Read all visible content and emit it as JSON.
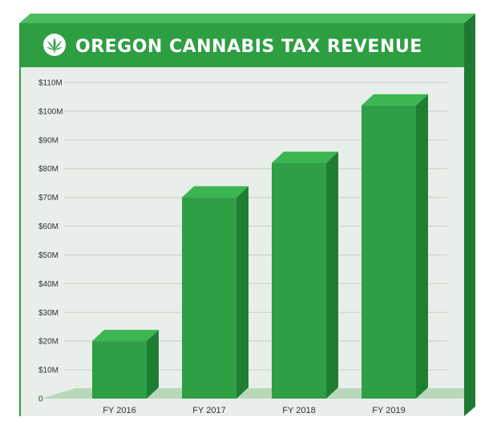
{
  "colors": {
    "frame_green": "#2e9e43",
    "frame_dark": "#1f7a31",
    "frame_light": "#4cba5e",
    "panel_bg": "#e8eee9",
    "bar_front": "#2f9f45",
    "bar_top": "#3cb553",
    "bar_side": "#1e7f33",
    "floor": "#b9d8bb",
    "grid": "#c9d0ca"
  },
  "icons": {
    "logo": "cannabis-leaf-icon"
  },
  "chart_data": {
    "type": "bar",
    "title": "OREGON CANNABIS TAX REVENUE",
    "xlabel": "",
    "ylabel": "",
    "categories": [
      "FY 2016",
      "FY 2017",
      "FY 2018",
      "FY 2019"
    ],
    "values": [
      20,
      70,
      82,
      102
    ],
    "unit": "$M",
    "ylim": [
      0,
      110
    ],
    "yticks": [
      0,
      10,
      20,
      30,
      40,
      50,
      60,
      70,
      80,
      90,
      100,
      110
    ],
    "ytick_labels": [
      "0",
      "$10M",
      "$20M",
      "$30M",
      "$40M",
      "$50M",
      "$60M",
      "$70M",
      "$80M",
      "$90M",
      "$100M",
      "$110M"
    ],
    "grid": true,
    "legend": "none"
  }
}
